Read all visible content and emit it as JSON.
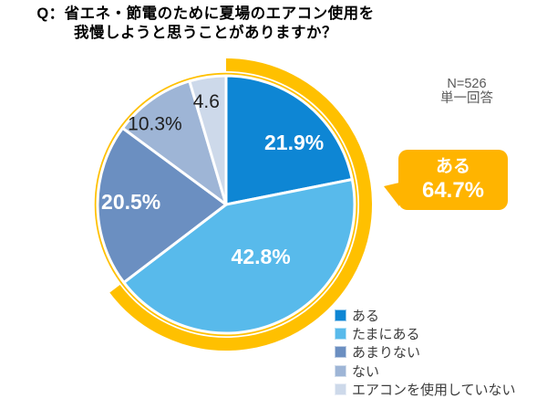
{
  "header": {
    "title_line1": "Q：省エネ・節電のために夏場のエアコン使用を",
    "title_line2": "我慢しようと思うことがありますか？"
  },
  "note": {
    "line1": "N=526",
    "line2": "単一回答"
  },
  "callout": {
    "line1": "ある",
    "line2": "64.7%",
    "bg_color": "#FFB400",
    "text_color": "#FFFFFF"
  },
  "chart_data": {
    "type": "pie",
    "title": "省エネ・節電のために夏場のエアコン使用を我慢しようと思うことがありますか？",
    "start_angle_deg": 0,
    "direction": "clockwise",
    "slices": [
      {
        "label": "ある",
        "value": 21.9,
        "display": "21.9%",
        "color": "#0E86D4",
        "label_style": "light"
      },
      {
        "label": "たまにある",
        "value": 42.8,
        "display": "42.8%",
        "color": "#58BAEB",
        "label_style": "light"
      },
      {
        "label": "あまりない",
        "value": 20.5,
        "display": "20.5%",
        "color": "#6B8FC1",
        "label_style": "light"
      },
      {
        "label": "ない",
        "value": 10.3,
        "display": "10.3%",
        "color": "#9EB5D6",
        "label_style": "dark"
      },
      {
        "label": "エアコンを使用していない",
        "value": 4.6,
        "display": "4.6",
        "color": "#CDD9EA",
        "label_style": "dark"
      }
    ],
    "highlight": {
      "label": "ある（計）",
      "value_pct": 64.7,
      "covers": [
        "ある",
        "たまにある"
      ],
      "color": "#FFC000"
    },
    "legend": {
      "position": "bottom-right",
      "entries": [
        "ある",
        "たまにある",
        "あまりない",
        "ない",
        "エアコンを使用していない"
      ]
    },
    "label_colors": {
      "light": "#FFFFFF",
      "dark": "#1F1F1F"
    }
  }
}
